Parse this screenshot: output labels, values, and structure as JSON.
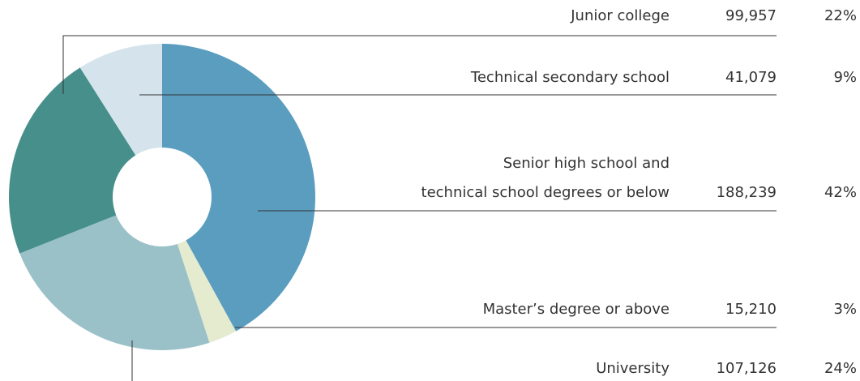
{
  "chart_data": {
    "type": "pie",
    "categories": [
      [
        "Senior high school and",
        "technical school degrees or below"
      ],
      [
        "Master’s degree or above"
      ],
      [
        "University"
      ],
      [
        "Junior college"
      ],
      [
        "Technical secondary school"
      ]
    ],
    "values": [
      42,
      3,
      24,
      22,
      9
    ],
    "value_labels": [
      "42%",
      "3%",
      "24%",
      "22%",
      "9%"
    ],
    "counts": [
      188239,
      15210,
      107126,
      99957,
      41079
    ],
    "count_labels": [
      "188,239",
      "15,210",
      "107,126",
      "99,957",
      "41,079"
    ],
    "colors": [
      "#5a9dbf",
      "#e4ebce",
      "#9bc1c8",
      "#468f8a",
      "#d5e4ec"
    ]
  }
}
